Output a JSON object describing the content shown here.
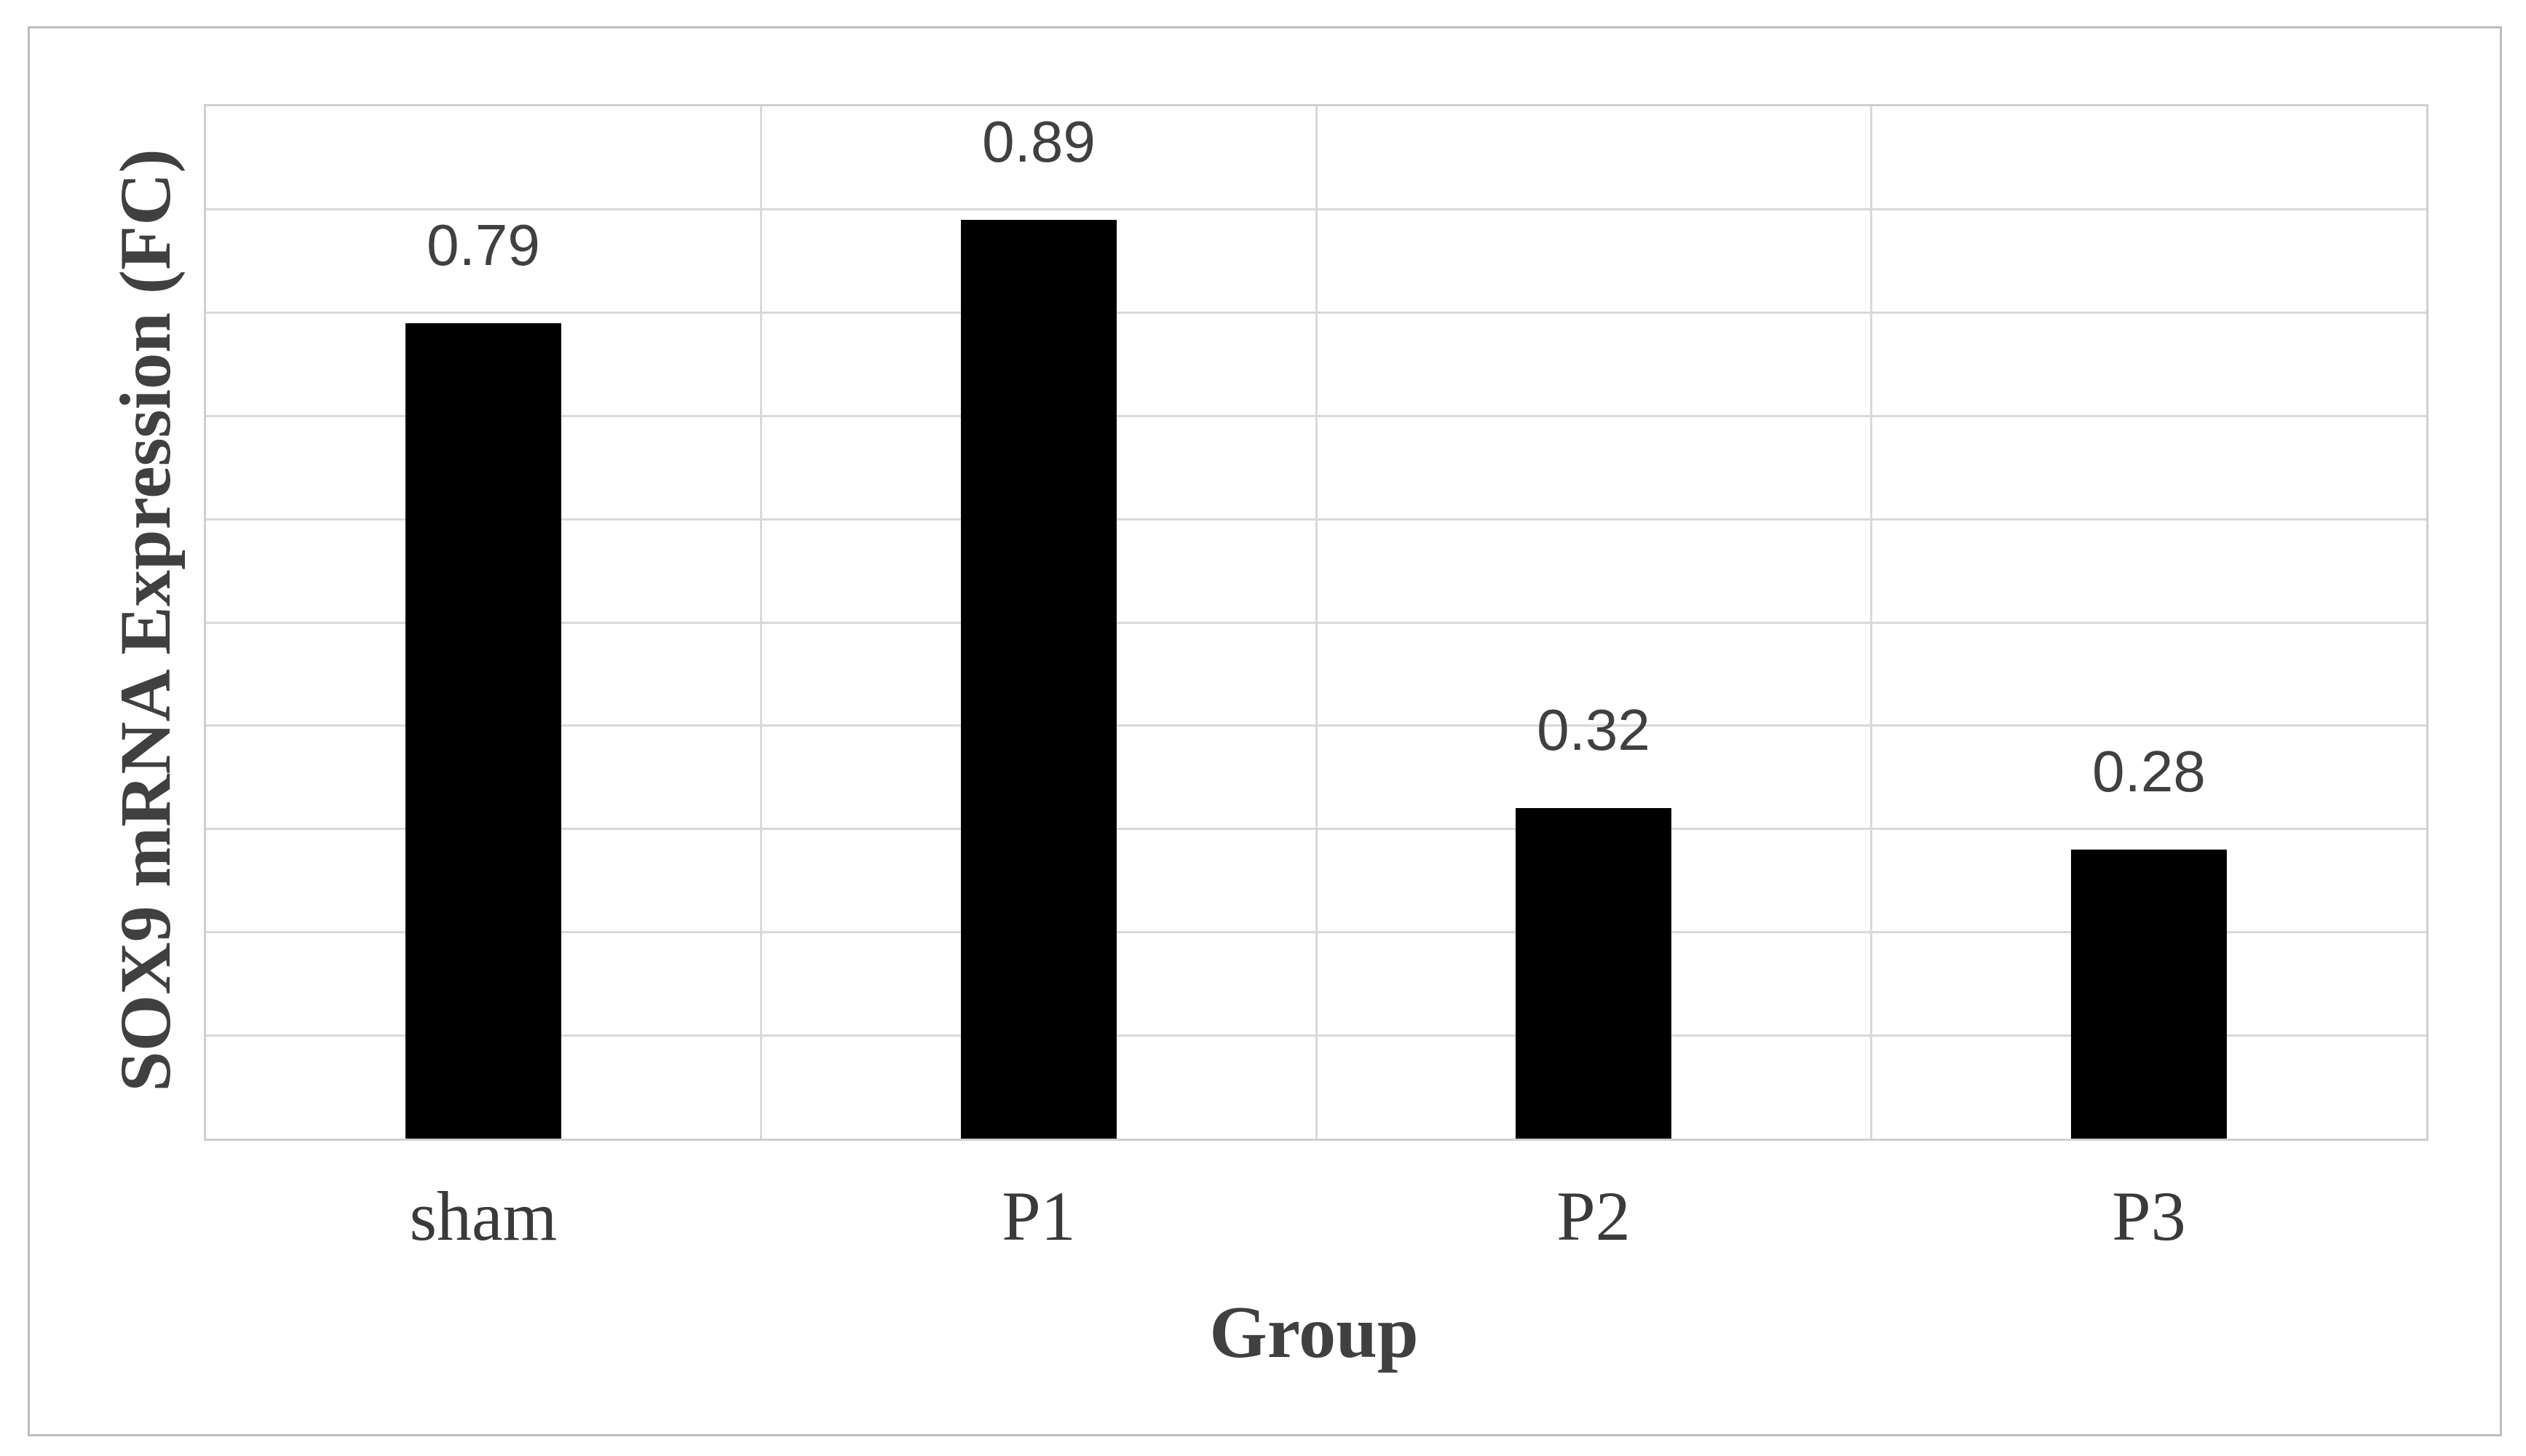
{
  "chart_data": {
    "type": "bar",
    "title": "",
    "xlabel": "Group",
    "ylabel": "SOX9 mRNA Expression (FC)",
    "categories": [
      "sham",
      "P1",
      "P2",
      "P3"
    ],
    "values": [
      0.79,
      0.89,
      0.32,
      0.28
    ],
    "data_labels": [
      "0.79",
      "0.89",
      "0.32",
      "0.28"
    ],
    "ylim": [
      0,
      1.0
    ],
    "y_gridline_interval": 0.1,
    "y_tick_labels_shown": false,
    "grid": "horizontal-and-vertical-category-boundaries",
    "legend_position": "none",
    "colors": {
      "bar": "#000000",
      "gridline": "#d9d9d9",
      "plot_border": "#cfcfcf",
      "figure_border": "#bdbdbd",
      "label_text": "#404040",
      "tick_text": "#3a3a3a",
      "background": "#ffffff"
    }
  }
}
